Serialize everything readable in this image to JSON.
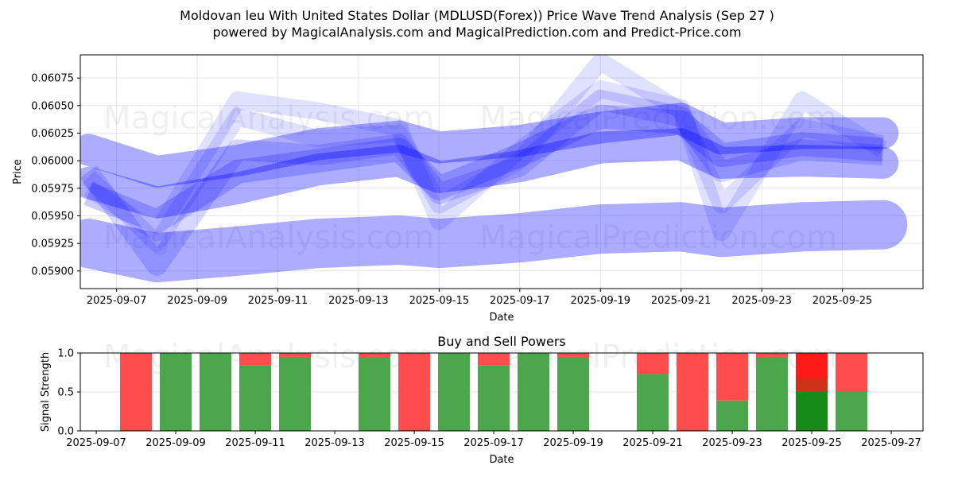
{
  "header": {
    "title": "Moldovan leu With United States Dollar (MDLUSD(Forex)) Price Wave Trend Analysis (Sep 27 )",
    "subtitle": "powered by MagicalAnalysis.com and MagicalPrediction.com and Predict-Price.com"
  },
  "watermarks": [
    "MagicalAnalysis.com",
    "MagicalPrediction.com"
  ],
  "chart_data": [
    {
      "type": "area",
      "title": "",
      "xlabel": "Date",
      "ylabel": "Price",
      "grid": true,
      "x_tick_labels": [
        "2025-09-07",
        "2025-09-09",
        "2025-09-11",
        "2025-09-13",
        "2025-09-15",
        "2025-09-17",
        "2025-09-19",
        "2025-09-21",
        "2025-09-23",
        "2025-09-25"
      ],
      "y_tick_labels": [
        "0.05900",
        "0.05925",
        "0.05950",
        "0.05975",
        "0.06000",
        "0.06025",
        "0.06050",
        "0.06075"
      ],
      "xlim": [
        "2025-09-06.1",
        "2025-09-27.0"
      ],
      "ylim": [
        0.05884,
        0.06096
      ],
      "x": [
        "2025-09-06",
        "2025-09-08",
        "2025-09-10",
        "2025-09-12",
        "2025-09-14",
        "2025-09-15",
        "2025-09-17",
        "2025-09-19",
        "2025-09-21",
        "2025-09-22",
        "2025-09-24",
        "2025-09-26"
      ],
      "series": [
        {
          "name": "upper-band",
          "values": [
            0.0601,
            0.0599,
            0.06,
            0.06015,
            0.06022,
            0.06012,
            0.06018,
            0.0603,
            0.06038,
            0.0602,
            0.06025,
            0.06025
          ]
        },
        {
          "name": "mid-band",
          "values": [
            0.0598,
            0.05962,
            0.05975,
            0.05992,
            0.06,
            0.05985,
            0.05995,
            0.06012,
            0.06015,
            0.05998,
            0.06,
            0.05998
          ]
        },
        {
          "name": "lower-band",
          "values": [
            0.05925,
            0.05912,
            0.05918,
            0.05925,
            0.05928,
            0.05925,
            0.0593,
            0.05938,
            0.0594,
            0.05935,
            0.0594,
            0.05942
          ]
        },
        {
          "name": "wave-1",
          "values": [
            0.05975,
            0.05935,
            0.06055,
            0.06045,
            0.0603,
            0.05945,
            0.0601,
            0.06065,
            0.06048,
            0.05935,
            0.06055,
            0.0601
          ]
        },
        {
          "name": "wave-2",
          "values": [
            0.05985,
            0.05925,
            0.0604,
            0.0602,
            0.06025,
            0.0596,
            0.06,
            0.0609,
            0.06045,
            0.0596,
            0.0603,
            0.06015
          ]
        },
        {
          "name": "wave-3",
          "values": [
            0.0599,
            0.05905,
            0.0601,
            0.06005,
            0.06015,
            0.0597,
            0.05995,
            0.06055,
            0.0604,
            0.0599,
            0.0601,
            0.06005
          ]
        },
        {
          "name": "wave-4",
          "values": [
            0.0597,
            0.05945,
            0.0599,
            0.06,
            0.0601,
            0.05975,
            0.06005,
            0.0604,
            0.06035,
            0.06005,
            0.06015,
            0.0601
          ]
        }
      ]
    },
    {
      "type": "bar",
      "title": "Buy and Sell Powers",
      "xlabel": "Date",
      "ylabel": "Signal Strength",
      "grid": true,
      "ylim": [
        0.0,
        1.0
      ],
      "y_tick_labels": [
        "0.0",
        "0.5",
        "1.0"
      ],
      "x_tick_labels": [
        "2025-09-07",
        "2025-09-09",
        "2025-09-11",
        "2025-09-13",
        "2025-09-15",
        "2025-09-17",
        "2025-09-19",
        "2025-09-21",
        "2025-09-23",
        "2025-09-25",
        "2025-09-27"
      ],
      "xlim": [
        "2025-09-06.6",
        "2025-09-27.8"
      ],
      "categories": [
        "2025-09-08",
        "2025-09-09",
        "2025-09-10",
        "2025-09-11",
        "2025-09-12",
        "2025-09-14",
        "2025-09-15",
        "2025-09-16",
        "2025-09-17",
        "2025-09-18",
        "2025-09-19",
        "2025-09-21",
        "2025-09-22",
        "2025-09-23",
        "2025-09-24",
        "2025-09-25",
        "2025-09-26"
      ],
      "series": [
        {
          "name": "Buy",
          "color": "#4ca64c",
          "values": [
            0.0,
            1.0,
            1.0,
            0.84,
            0.95,
            0.95,
            0.0,
            1.0,
            0.84,
            1.0,
            0.95,
            0.73,
            0.0,
            0.39,
            0.95,
            0.5,
            0.5
          ]
        },
        {
          "name": "Sell",
          "color": "#ff4c4c",
          "values": [
            1.0,
            0.0,
            0.0,
            0.16,
            0.05,
            0.05,
            1.0,
            0.0,
            0.16,
            0.0,
            0.05,
            0.27,
            1.0,
            0.61,
            0.05,
            0.5,
            0.5
          ]
        }
      ],
      "highlight": {
        "category": "2025-09-25",
        "buy_color": "#188a18",
        "sell_color": "#ff1a1a",
        "overlap_color": "#cc3318",
        "overlap_range": [
          0.5,
          0.67
        ]
      }
    }
  ]
}
